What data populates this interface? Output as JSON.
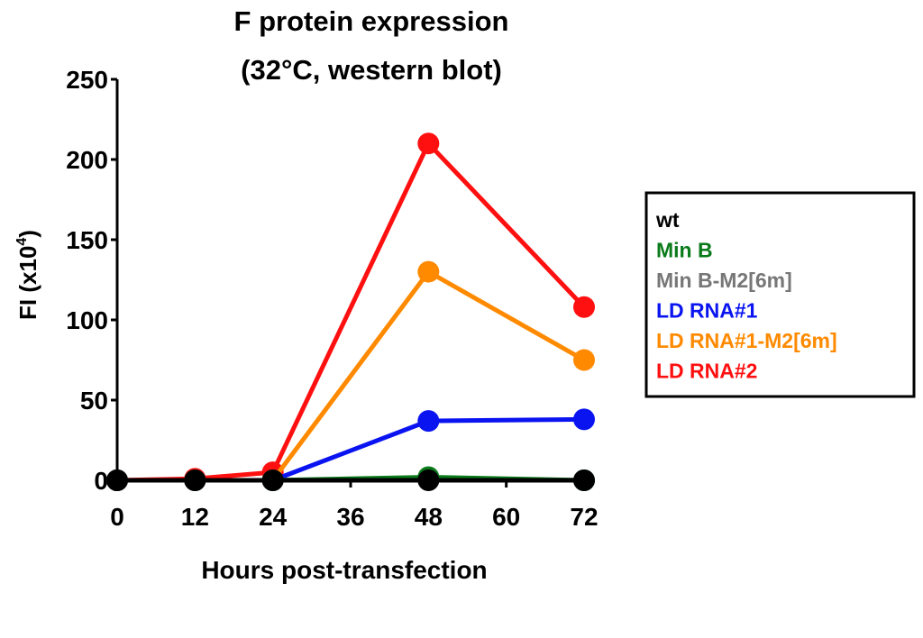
{
  "chart_data": {
    "type": "line",
    "title_line1": "F protein expression",
    "title_line2": "(32°C, western blot)",
    "xlabel": "Hours post-transfection",
    "ylabel": "FI (x10",
    "ylabel_exp": "4",
    "ylabel_close": ")",
    "x": [
      0,
      12,
      24,
      48,
      72
    ],
    "xticks": [
      0,
      12,
      24,
      36,
      48,
      60,
      72
    ],
    "yticks": [
      0,
      50,
      100,
      150,
      200,
      250
    ],
    "xlim": [
      0,
      72
    ],
    "ylim": [
      0,
      250
    ],
    "grid": false,
    "legend_placement": "right",
    "series": [
      {
        "name": "wt",
        "color": "#000000",
        "values": [
          0,
          0,
          0,
          0,
          0
        ]
      },
      {
        "name": "Min B",
        "color": "#0a7a1a",
        "values": [
          0,
          0,
          0,
          2,
          0
        ]
      },
      {
        "name": "Min B-M2[6m]",
        "color": "#777777",
        "values": [
          0,
          0,
          0,
          1,
          0
        ]
      },
      {
        "name": "LD RNA#1",
        "color": "#0a14f0",
        "values": [
          0,
          0,
          0,
          37,
          38
        ]
      },
      {
        "name": "LD RNA#1-M2[6m]",
        "color": "#ff8a00",
        "values": [
          0,
          0,
          0,
          130,
          75
        ]
      },
      {
        "name": "LD RNA#2",
        "color": "#ff1010",
        "values": [
          0,
          1,
          5,
          210,
          108
        ]
      }
    ]
  }
}
